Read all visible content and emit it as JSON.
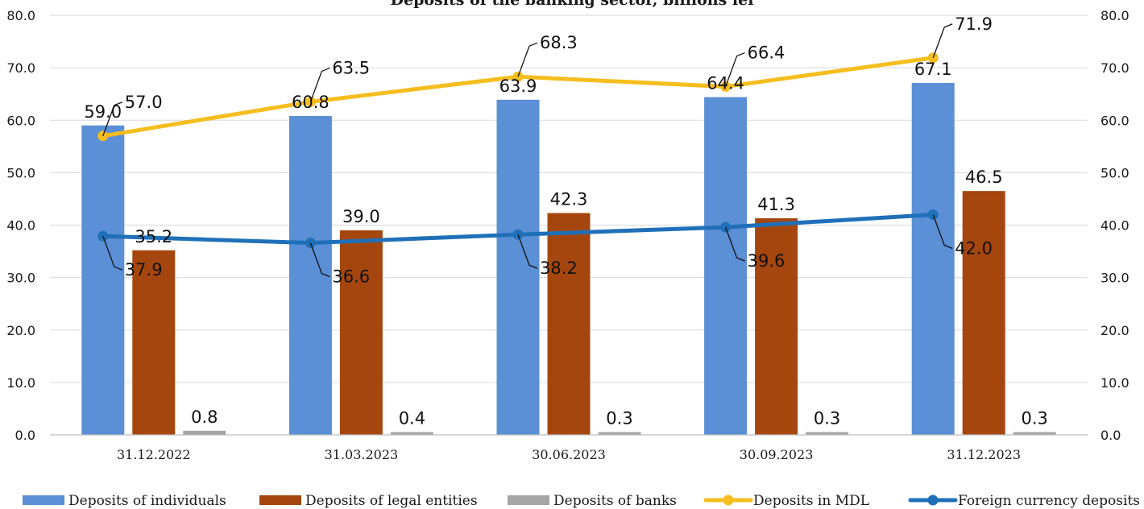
{
  "chart_data": {
    "type": "bar",
    "title": "Deposits of the banking sector, billions lei",
    "categories": [
      "31.12.2022",
      "31.03.2023",
      "30.06.2023",
      "30.09.2023",
      "31.12.2023"
    ],
    "ylim": [
      0,
      80
    ],
    "yticks": [
      "0.0",
      "10.0",
      "20.0",
      "30.0",
      "40.0",
      "50.0",
      "60.0",
      "70.0",
      "80.0"
    ],
    "y2lim": [
      0,
      80
    ],
    "y2ticks": [
      "0.0",
      "10.0",
      "20.0",
      "30.0",
      "40.0",
      "50.0",
      "60.0",
      "70.0",
      "80.0"
    ],
    "grid": true,
    "legend_position": "bottom",
    "series": [
      {
        "name": "Deposits of individuals",
        "kind": "bar",
        "color": "#5B8FD6",
        "values": [
          59.0,
          60.8,
          63.9,
          64.4,
          67.1
        ],
        "labels": [
          "59.0",
          "60.8",
          "63.9",
          "64.4",
          "67.1"
        ]
      },
      {
        "name": "Deposits of legal entities",
        "kind": "bar",
        "color": "#A5460E",
        "values": [
          35.2,
          39.0,
          42.3,
          41.3,
          46.5
        ],
        "labels": [
          "35.2",
          "39.0",
          "42.3",
          "41.3",
          "46.5"
        ]
      },
      {
        "name": "Deposits of banks",
        "kind": "bar",
        "color": "#A5A5A5",
        "values": [
          0.8,
          0.4,
          0.3,
          0.3,
          0.3
        ],
        "labels": [
          "0.8",
          "0.4",
          "0.3",
          "0.3",
          "0.3"
        ]
      },
      {
        "name": "Deposits in MDL",
        "kind": "line",
        "color": "#F5BE1E",
        "values": [
          57.0,
          63.5,
          68.3,
          66.4,
          71.9
        ],
        "labels": [
          "57.0",
          "63.5",
          "68.3",
          "66.4",
          "71.9"
        ]
      },
      {
        "name": "Foreign currency deposits",
        "kind": "line",
        "color": "#1F70B8",
        "values": [
          37.9,
          36.6,
          38.2,
          39.6,
          42.0
        ],
        "labels": [
          "37.9",
          "36.6",
          "38.2",
          "39.6",
          "42.0"
        ]
      }
    ]
  }
}
